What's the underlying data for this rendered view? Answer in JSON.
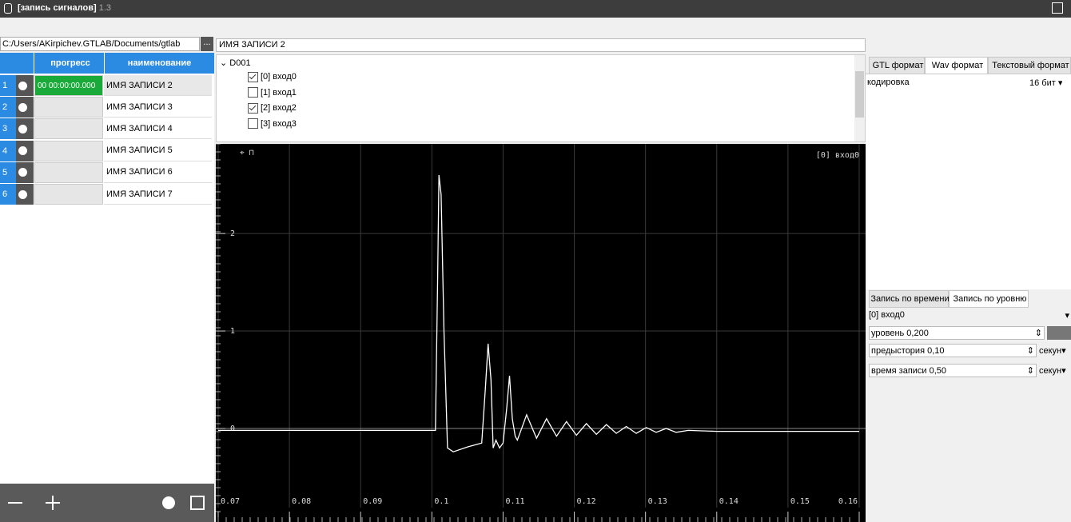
{
  "window": {
    "title": "[запись сигналов]",
    "version": "1.3"
  },
  "left_panel": {
    "path": "C:/Users/AKirpichev.GTLAB/Documents/gtlab",
    "browse": "...",
    "table": {
      "columns": [
        "прогресс",
        "наименование"
      ],
      "rows": [
        {
          "index": "1",
          "progress": "00 00:00:00.000",
          "name": "ИМЯ ЗАПИСИ 2"
        },
        {
          "index": "2",
          "name": "ИМЯ ЗАПИСИ 3"
        },
        {
          "index": "3",
          "name": "ИМЯ ЗАПИСИ 4"
        },
        {
          "index": "4",
          "name": "ИМЯ ЗАПИСИ 5"
        },
        {
          "index": "5",
          "name": "ИМЯ ЗАПИСИ 6"
        },
        {
          "index": "6",
          "name": "ИМЯ ЗАПИСИ 7"
        }
      ]
    }
  },
  "record_name": "ИМЯ ЗАПИСИ 2",
  "tree": {
    "device": "D001",
    "channels": [
      {
        "label": "[0] вход0",
        "checked": true
      },
      {
        "label": "[1] вход1",
        "checked": false
      },
      {
        "label": "[2] вход2",
        "checked": true
      },
      {
        "label": "[3] вход3",
        "checked": false
      }
    ]
  },
  "chart_data": {
    "type": "line",
    "label": "[0] вход0",
    "series": [
      {
        "color": "#ffffff",
        "x": [
          0.07,
          0.1005,
          0.1008,
          0.101,
          0.1013,
          0.1017,
          0.1022,
          0.103,
          0.105,
          0.107,
          0.1075,
          0.1079,
          0.1083,
          0.1086,
          0.109,
          0.1095,
          0.11,
          0.1105,
          0.1109,
          0.1113,
          0.1117,
          0.112,
          0.1133,
          0.1147,
          0.1161,
          0.1175,
          0.1189,
          0.1203,
          0.1217,
          0.1231,
          0.1245,
          0.1259,
          0.1273,
          0.1287,
          0.1301,
          0.1315,
          0.1329,
          0.1343,
          0.136,
          0.14,
          0.16
        ],
        "values": [
          -0.02,
          -0.02,
          1.5,
          2.6,
          2.4,
          1.0,
          -0.2,
          -0.24,
          -0.19,
          -0.15,
          0.4,
          0.87,
          0.5,
          -0.2,
          -0.12,
          -0.2,
          -0.15,
          0.2,
          0.54,
          0.1,
          -0.08,
          -0.12,
          0.14,
          -0.1,
          0.1,
          -0.08,
          0.07,
          -0.07,
          0.05,
          -0.06,
          0.04,
          -0.05,
          0.02,
          -0.05,
          0.01,
          -0.04,
          0.0,
          -0.04,
          -0.02,
          -0.03,
          -0.03
        ]
      }
    ],
    "xlim": [
      0.07,
      0.16
    ],
    "xticks": [
      0.07,
      0.08,
      0.09,
      0.1,
      0.11,
      0.12,
      0.13,
      0.14,
      0.15,
      0.16
    ],
    "ylim": [
      -0.96,
      2.92
    ],
    "yticks": [
      0,
      1,
      2
    ],
    "grid": true
  },
  "right_panel": {
    "format_tabs": [
      "GTL формат",
      "Wav формат",
      "Текстовый формат"
    ],
    "encoding_label": "кодировка",
    "encoding": "16 бит",
    "mode_tabs": [
      "Запись по времени",
      "Запись по уровню"
    ],
    "channel": "[0] вход0",
    "level": "уровень 0,200",
    "pre_history": "предыстория 0,10",
    "pre_history_unit": "секун",
    "record_time": "время записи 0,50",
    "record_time_unit": "секун"
  }
}
